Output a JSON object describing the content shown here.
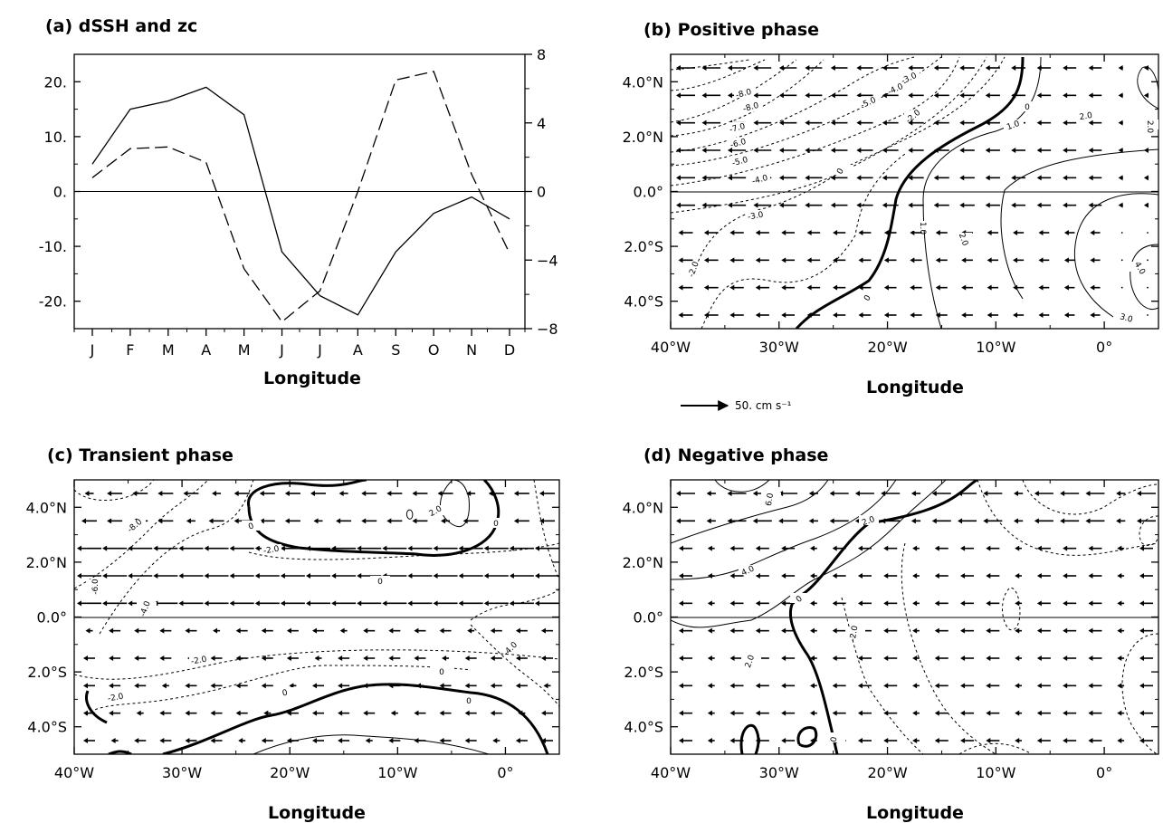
{
  "chart_data": [
    {
      "panel": "a",
      "type": "line",
      "title": "(a) dSSH and zc",
      "xlabel": "Longitude",
      "categories": [
        "J",
        "F",
        "M",
        "A",
        "M",
        "J",
        "J",
        "A",
        "S",
        "O",
        "N",
        "D"
      ],
      "left_axis": {
        "ylim": [
          -25,
          25
        ],
        "ticks": [
          20,
          10,
          0,
          -10,
          -20
        ],
        "tick_labels": [
          "20.",
          "10.",
          "0.",
          "-10.",
          "-20."
        ]
      },
      "right_axis": {
        "ylim": [
          -8,
          8
        ],
        "ticks": [
          8,
          4,
          0,
          -4,
          -8
        ],
        "tick_labels": [
          "8",
          "4",
          "0",
          "−4",
          "−8"
        ]
      },
      "series": [
        {
          "style": "solid",
          "axis": "left",
          "values": [
            5,
            15,
            16.5,
            19,
            14,
            -11,
            -19,
            -22.5,
            -11,
            -4,
            -1,
            -5
          ]
        },
        {
          "style": "dashed",
          "axis": "right",
          "values": [
            0.8,
            2.5,
            2.6,
            1.7,
            -4.5,
            -7.6,
            -5.8,
            0,
            6.5,
            7,
            1,
            -3.6
          ]
        }
      ]
    },
    {
      "panel": "b",
      "type": "contour+vector",
      "title": "(b) Positive phase",
      "xlabel": "Longitude",
      "xlim": [
        -40,
        5
      ],
      "ylim": [
        -5,
        5
      ],
      "x_ticks": [
        "40°W",
        "30°W",
        "20°W",
        "10°W",
        "0°"
      ],
      "y_ticks": [
        "4.0°N",
        "2.0°N",
        "0.0°",
        "2.0°S",
        "4.0°S"
      ],
      "contour_labels": [
        "-8.0",
        "-8.0",
        "-7.0",
        "-6.0",
        "-5.0",
        "-4.0",
        "-3.0",
        "-2.0",
        "-5.0",
        "-4.0",
        "-3.0",
        "-2.0",
        "1.0",
        "2.0",
        "1.0",
        "2.0",
        "4.0",
        "3.0",
        "0",
        "0",
        "0",
        "2.0"
      ],
      "vector_field": "westward",
      "vector_key": {
        "value": "50. cm s⁻¹"
      }
    },
    {
      "panel": "c",
      "type": "contour+vector",
      "title": "(c) Transient phase",
      "xlabel": "Longitude",
      "xlim": [
        -40,
        5
      ],
      "ylim": [
        -5,
        5
      ],
      "x_ticks": [
        "40°W",
        "30°W",
        "20°W",
        "10°W",
        "0°"
      ],
      "y_ticks": [
        "4.0°N",
        "2.0°N",
        "0.0°",
        "2.0°S",
        "4.0°S"
      ],
      "contour_labels": [
        "-8.0",
        "-6.0",
        "-4.0",
        "2.0",
        "0",
        "0",
        "0",
        "-2.0",
        "-2.0",
        "-2.0",
        "0",
        "0",
        "0",
        "-4.0"
      ],
      "vector_field": "westward"
    },
    {
      "panel": "d",
      "type": "contour+vector",
      "title": "(d) Negative phase",
      "xlabel": "Longitude",
      "xlim": [
        -40,
        5
      ],
      "ylim": [
        -5,
        5
      ],
      "x_ticks": [
        "40°W",
        "30°W",
        "20°W",
        "10°W",
        "0°"
      ],
      "y_ticks": [
        "4.0°N",
        "2.0°N",
        "0.0°",
        "2.0°S",
        "4.0°S"
      ],
      "contour_labels": [
        "6.0",
        "2.0",
        "4.0",
        "2.0",
        "0",
        "-2.0",
        "0"
      ],
      "vector_field": "westward"
    }
  ]
}
